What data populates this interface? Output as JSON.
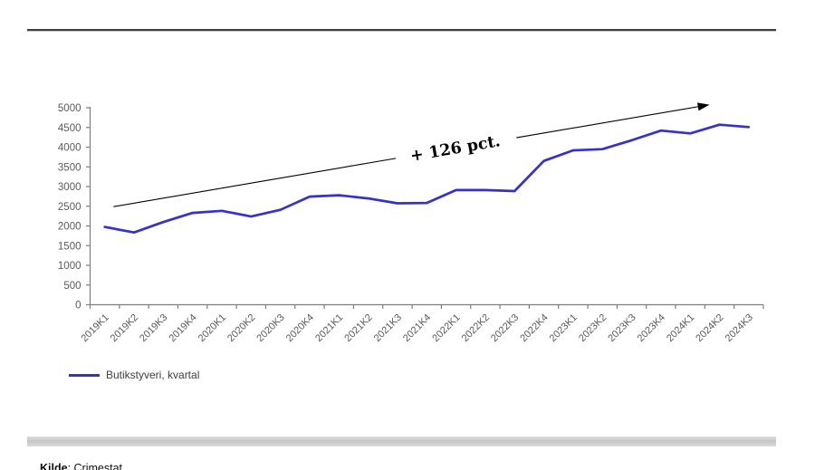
{
  "window": {
    "background": "#ffffff"
  },
  "chart_data": {
    "type": "line",
    "title": "",
    "xlabel": "",
    "ylabel": "",
    "categories": [
      "2019K1",
      "2019K2",
      "2019K3",
      "2019K4",
      "2020K1",
      "2020K2",
      "2020K3",
      "2020K4",
      "2021K1",
      "2021K2",
      "2021K3",
      "2021K4",
      "2022K1",
      "2022K2",
      "2022K3",
      "2022K4",
      "2023K1",
      "2023K2",
      "2023K3",
      "2023K4",
      "2024K1",
      "2024K2",
      "2024K3"
    ],
    "series": [
      {
        "name": "Butikstyveri, kvartal",
        "color": "#3431cd",
        "values": [
          1975,
          1835,
          2100,
          2330,
          2385,
          2240,
          2410,
          2745,
          2780,
          2700,
          2575,
          2585,
          2910,
          2910,
          2885,
          3650,
          3920,
          3950,
          4175,
          4420,
          4350,
          4570,
          4510
        ]
      }
    ],
    "ylim": [
      0,
      5000
    ],
    "y_ticks": [
      0,
      500,
      1000,
      1500,
      2000,
      2500,
      3000,
      3500,
      4000,
      4500,
      5000
    ],
    "grid": false,
    "legend_position": "bottom-left",
    "annotation": {
      "text": "+ 126 pct.",
      "arrow_from": {
        "category_index": 0.3,
        "value": 2490
      },
      "arrow_to": {
        "category_index": 20.6,
        "value": 5070
      }
    }
  },
  "legend": {
    "label": "Butikstyveri, kvartal"
  },
  "footer": {
    "source_label": "Kilde",
    "source_separator": ": ",
    "source_value": "Crimestat"
  },
  "colors": {
    "line": "#3431cd",
    "axis": "#7f7f7f",
    "tick_label": "#595959",
    "annotation": "#000000",
    "scrollbar": "#cccccc",
    "spellcheck_underline": "#e0342b"
  }
}
